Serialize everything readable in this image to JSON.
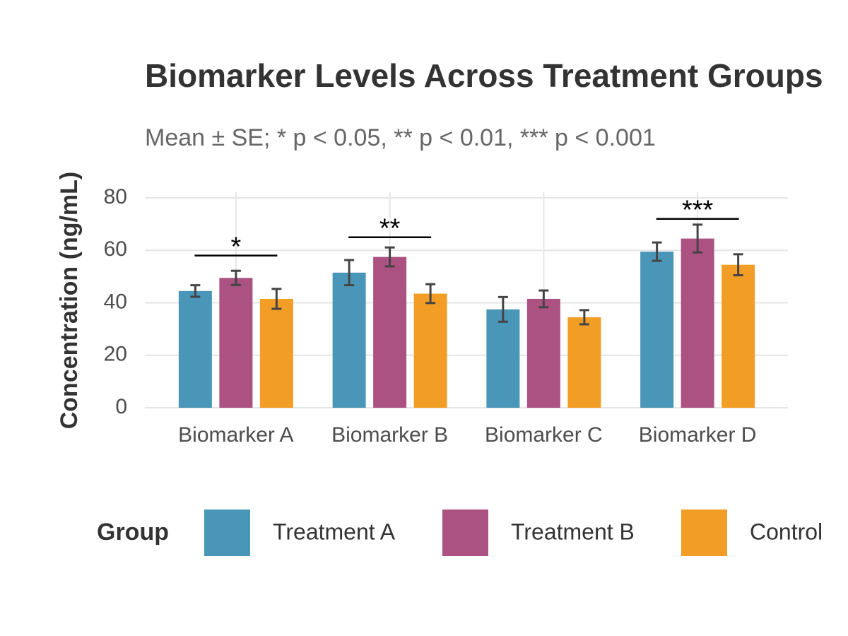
{
  "chart_data": {
    "type": "bar",
    "title": "Biomarker Levels Across Treatment Groups",
    "subtitle": "Mean ± SE; * p < 0.05, ** p < 0.01, *** p < 0.001",
    "y_label": "Concentration (ng/mL)",
    "legend_title": "Group",
    "categories": [
      "Biomarker A",
      "Biomarker B",
      "Biomarker C",
      "Biomarker D"
    ],
    "series": [
      {
        "name": "Treatment A",
        "color": "#4a96b8",
        "values": [
          44.5,
          51.5,
          37.5,
          59.5
        ],
        "errors": [
          2.2,
          4.8,
          4.7,
          3.5
        ]
      },
      {
        "name": "Treatment B",
        "color": "#ab5283",
        "values": [
          49.5,
          57.5,
          41.5,
          64.5
        ],
        "errors": [
          2.7,
          3.6,
          3.2,
          5.3
        ]
      },
      {
        "name": "Control",
        "color": "#f29d25",
        "values": [
          41.5,
          43.5,
          34.5,
          54.5
        ],
        "errors": [
          3.8,
          3.6,
          2.7,
          4.0
        ]
      }
    ],
    "annotations": [
      {
        "category": "Biomarker A",
        "label": "*",
        "y": 58
      },
      {
        "category": "Biomarker B",
        "label": "**",
        "y": 65
      },
      {
        "category": "Biomarker D",
        "label": "***",
        "y": 72
      }
    ],
    "ylim": [
      0,
      80
    ],
    "yticks": [
      0,
      20,
      40,
      60,
      80
    ],
    "grid": true,
    "legend_position": "bottom"
  }
}
